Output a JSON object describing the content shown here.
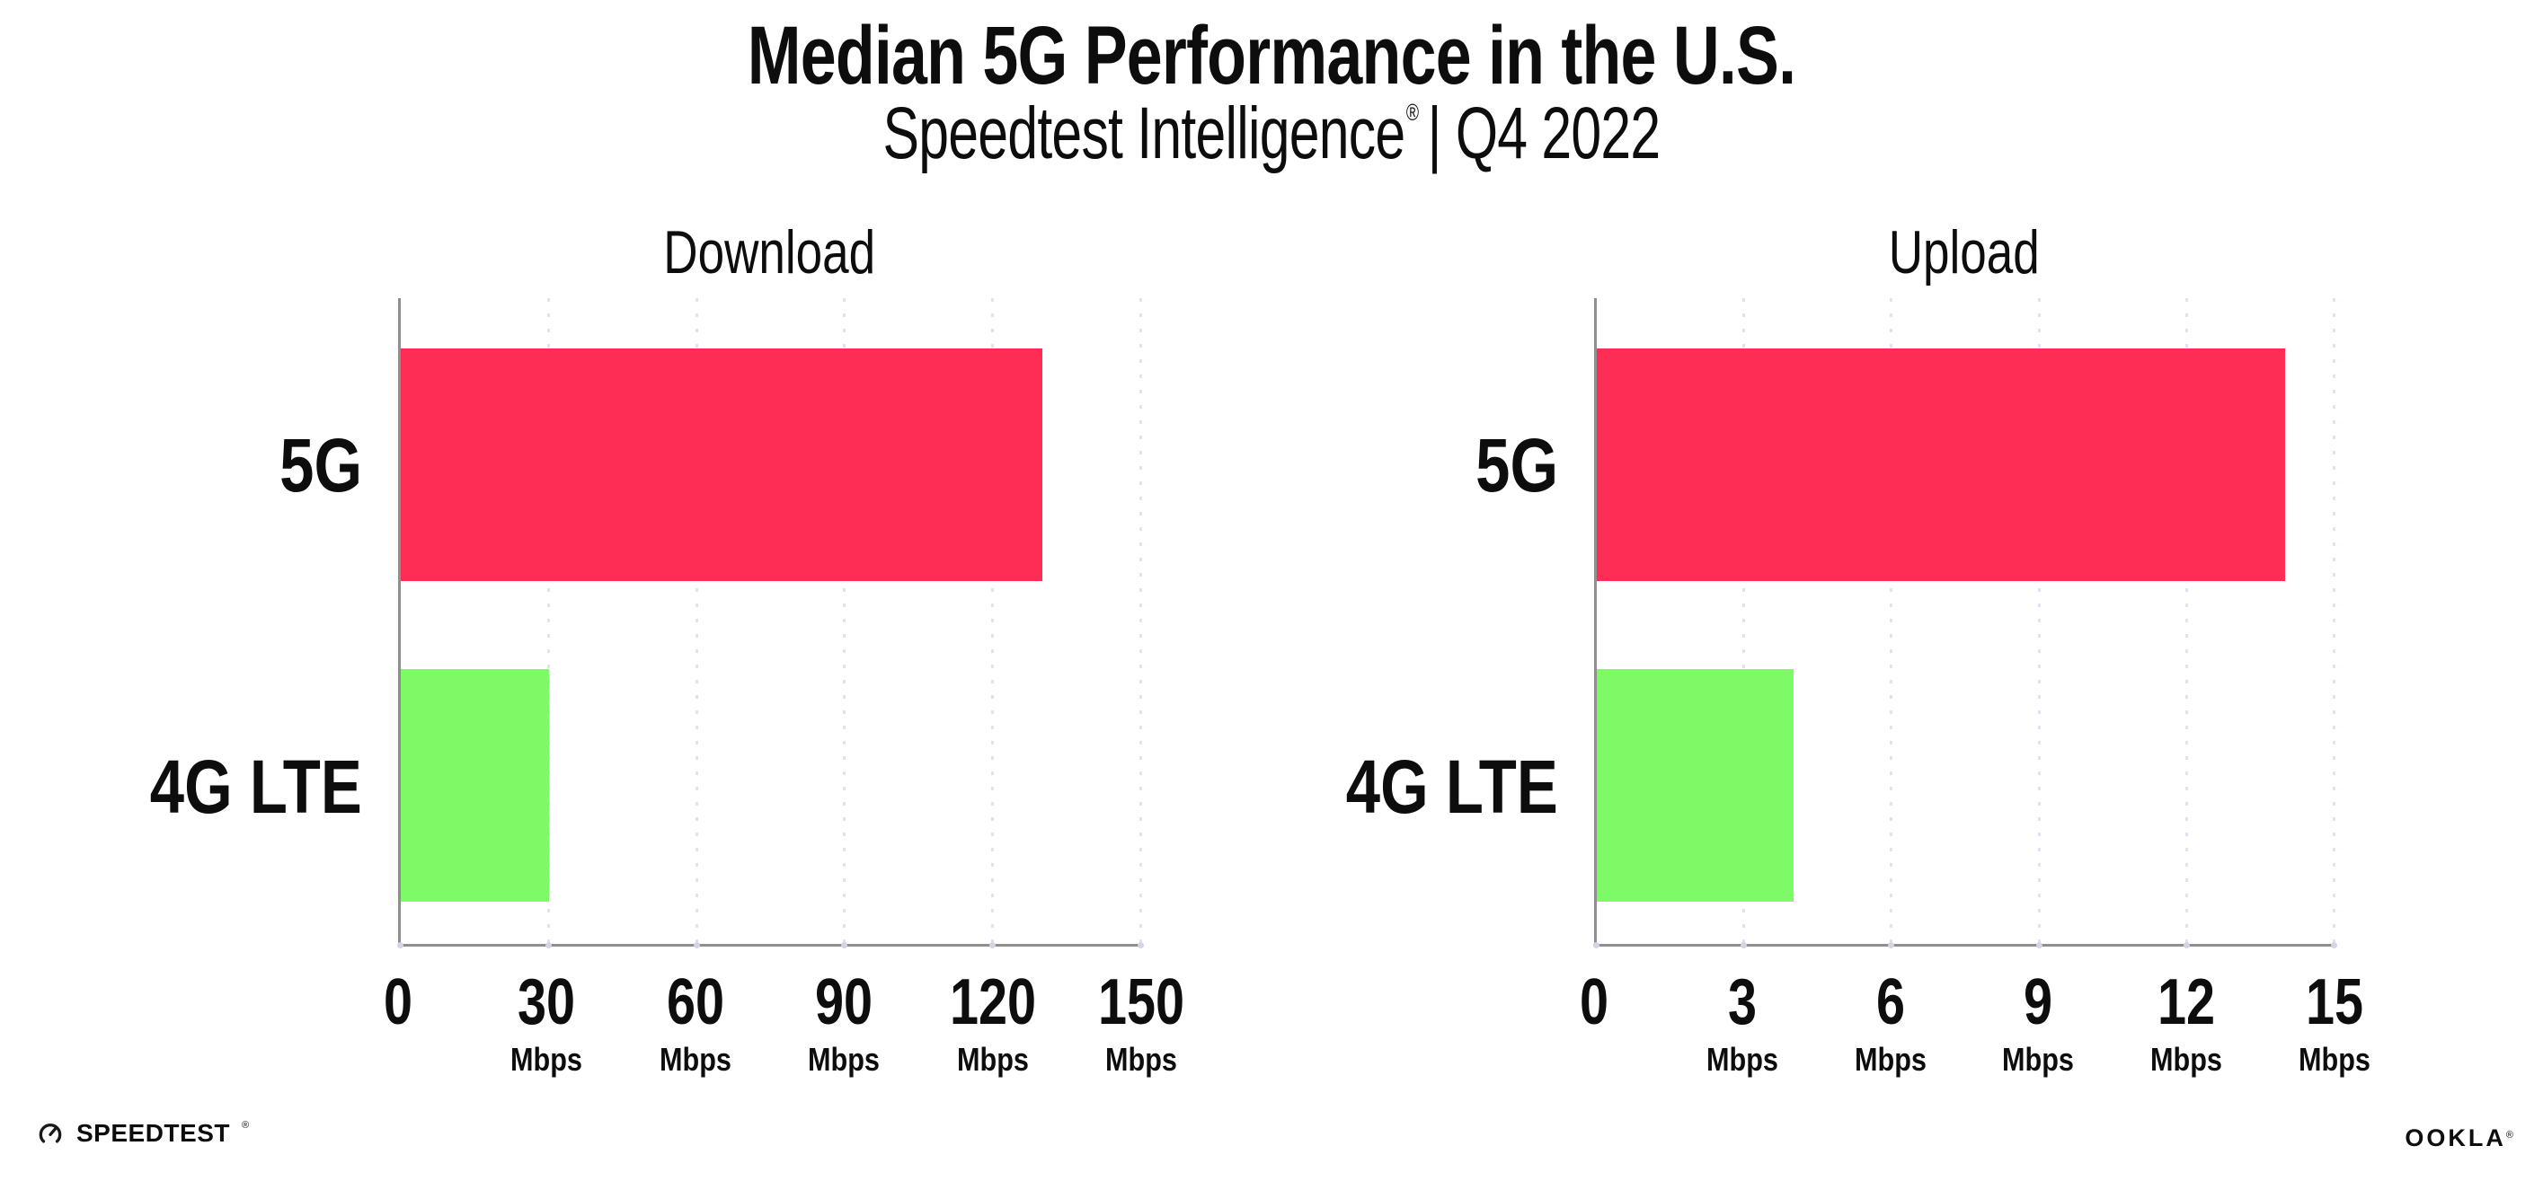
{
  "header": {
    "title": "Median 5G Performance in the U.S.",
    "subtitle_brand": "Speedtest Intelligence",
    "subtitle_reg": "®",
    "subtitle_rest": "| Q4 2022"
  },
  "footer": {
    "speedtest_label": "SPEEDTEST",
    "speedtest_mark": "®",
    "speedtest_icon": "gauge-icon",
    "ookla_label": "OOKLA",
    "ookla_mark": "®"
  },
  "colors": {
    "bar_5g": "#fd2d55",
    "bar_4g_lte": "#7efa67",
    "axis": "#8f8f8f",
    "gridline": "#e2e2ec",
    "text": "#0d0d0d",
    "background": "#ffffff"
  },
  "chart_data": [
    {
      "type": "bar",
      "orientation": "horizontal",
      "title": "Download",
      "categories": [
        "5G",
        "4G LTE"
      ],
      "values": [
        130,
        30
      ],
      "unit": "Mbps",
      "xlim": [
        0,
        150
      ],
      "xticks": [
        0,
        30,
        60,
        90,
        120,
        150
      ],
      "bar_colors": [
        "#fd2d55",
        "#7efa67"
      ],
      "grid": "dotted-vertical",
      "legend": "none"
    },
    {
      "type": "bar",
      "orientation": "horizontal",
      "title": "Upload",
      "categories": [
        "5G",
        "4G LTE"
      ],
      "values": [
        14,
        4
      ],
      "unit": "Mbps",
      "xlim": [
        0,
        15
      ],
      "xticks": [
        0,
        3,
        6,
        9,
        12,
        15
      ],
      "bar_colors": [
        "#fd2d55",
        "#7efa67"
      ],
      "grid": "dotted-vertical",
      "legend": "none"
    }
  ]
}
